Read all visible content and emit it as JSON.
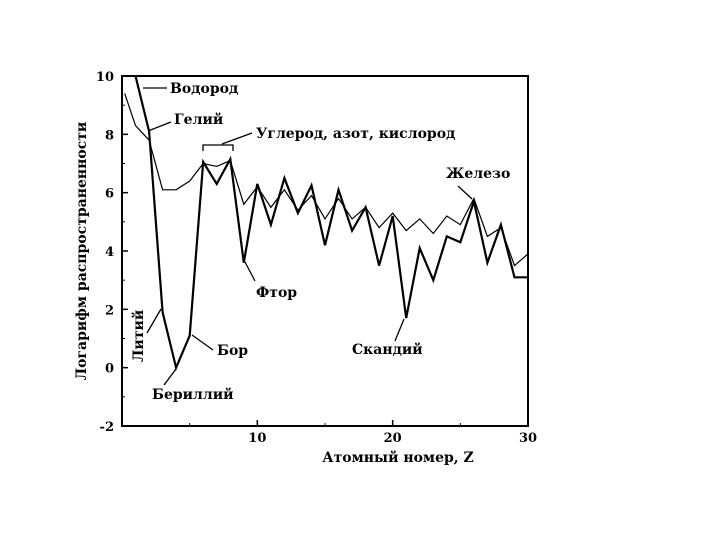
{
  "chart_data": {
    "type": "line",
    "title": "",
    "xlabel": "Атомный номер, Z",
    "ylabel": "Логарифм распространенности",
    "xlim": [
      0,
      30
    ],
    "ylim": [
      -2,
      10
    ],
    "x_ticks": [
      10,
      20,
      30
    ],
    "y_ticks": [
      10,
      8,
      6,
      4,
      2,
      0,
      -2
    ],
    "grid": false,
    "legend": "none",
    "series": [
      {
        "x": [
          1,
          2,
          3,
          4,
          5,
          6,
          7,
          8,
          9,
          10,
          11,
          12,
          13,
          14,
          15,
          16,
          17,
          18,
          19,
          20,
          21,
          22,
          23,
          24,
          25,
          26,
          27,
          28,
          29,
          30
        ],
        "y": [
          10.0,
          8.1,
          1.9,
          0.0,
          1.1,
          7.05,
          6.3,
          7.15,
          3.6,
          6.3,
          4.9,
          6.5,
          5.3,
          6.25,
          4.2,
          6.1,
          4.7,
          5.5,
          3.5,
          5.2,
          1.7,
          4.1,
          3.0,
          4.5,
          4.3,
          5.7,
          3.6,
          4.9,
          3.1,
          3.1
        ]
      },
      {
        "x": [
          0.2,
          1,
          2,
          3,
          4,
          5,
          6,
          7,
          8,
          9,
          10,
          11,
          12,
          13,
          14,
          15,
          16,
          17,
          18,
          19,
          20,
          21,
          22,
          23,
          24,
          25,
          26,
          27,
          28,
          29,
          30
        ],
        "y": [
          9.4,
          8.3,
          7.8,
          6.1,
          6.1,
          6.4,
          7.0,
          6.9,
          7.1,
          5.6,
          6.2,
          5.5,
          6.1,
          5.4,
          5.9,
          5.1,
          5.8,
          5.1,
          5.5,
          4.8,
          5.3,
          4.7,
          5.1,
          4.6,
          5.2,
          4.9,
          5.8,
          4.5,
          4.8,
          3.5,
          3.9
        ]
      }
    ],
    "annotations": [
      {
        "text": "Водород",
        "x": 1,
        "y": 10
      },
      {
        "text": "Гелий",
        "x": 2,
        "y": 8
      },
      {
        "text": "Углерод, азот, кислород",
        "x": 7,
        "y": 7.3
      },
      {
        "text": "Железо",
        "x": 26,
        "y": 5.7
      },
      {
        "text": "Фтор",
        "x": 9,
        "y": 3.6
      },
      {
        "text": "Литий",
        "x": 3,
        "y": 1.9
      },
      {
        "text": "Бор",
        "x": 5,
        "y": 1.1
      },
      {
        "text": "Бериллий",
        "x": 4,
        "y": 0
      },
      {
        "text": "Скандий",
        "x": 21,
        "y": 1.7
      }
    ]
  }
}
